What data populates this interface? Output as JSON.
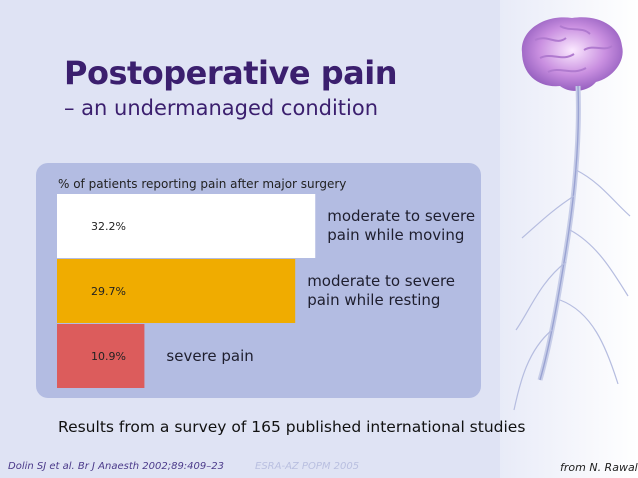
{
  "slide": {
    "title": "Postoperative pain",
    "subtitle": "– an undermanaged condition",
    "caption": "Results from a survey of 165 published international studies",
    "citation": "Dolin SJ et al. Br J Anaesth 2002;89:409–23",
    "watermark": "ESRA-AZ POPM 2005",
    "credit": "from N. Rawal",
    "decoration": "brain-and-spinal-cord-icon"
  },
  "chart_data": {
    "type": "bar",
    "orientation": "horizontal",
    "title": "% of patients reporting pain after major surgery",
    "categories": [
      "moderate to severe pain while moving",
      "moderate to severe pain while resting",
      "severe pain"
    ],
    "category_lines": [
      [
        "moderate to severe",
        "pain while moving"
      ],
      [
        "moderate to severe",
        "pain while resting"
      ],
      [
        "severe pain"
      ]
    ],
    "values": [
      32.2,
      29.7,
      10.9
    ],
    "value_labels": [
      "32.2%",
      "29.7%",
      "10.9%"
    ],
    "colors": [
      "#ffffff",
      "#f0ac00",
      "#dc5c5c"
    ],
    "unit": "%",
    "xlim": [
      0,
      35
    ],
    "grid": false,
    "legend": "none"
  }
}
